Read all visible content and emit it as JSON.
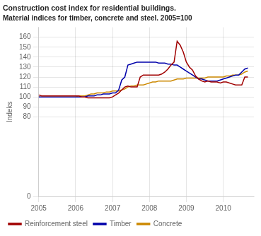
{
  "chart_data": {
    "type": "line",
    "title": "Construction cost index for residential buildings.",
    "subtitle": "Material indices for timber, concrete and steel. 2005=100",
    "y_label": "Indeks",
    "x": [
      2005.0,
      2005.083,
      2005.167,
      2005.25,
      2005.333,
      2005.417,
      2005.5,
      2005.583,
      2005.667,
      2005.75,
      2005.833,
      2005.917,
      2006.0,
      2006.083,
      2006.167,
      2006.25,
      2006.333,
      2006.417,
      2006.5,
      2006.583,
      2006.667,
      2006.75,
      2006.833,
      2006.917,
      2007.0,
      2007.083,
      2007.167,
      2007.25,
      2007.333,
      2007.417,
      2007.5,
      2007.583,
      2007.667,
      2007.75,
      2007.833,
      2007.917,
      2008.0,
      2008.083,
      2008.167,
      2008.25,
      2008.333,
      2008.417,
      2008.5,
      2008.583,
      2008.667,
      2008.75,
      2008.833,
      2008.917,
      2009.0,
      2009.083,
      2009.167,
      2009.25,
      2009.333,
      2009.417,
      2009.5,
      2009.583,
      2009.667,
      2009.75,
      2009.833,
      2009.917,
      2010.0,
      2010.083,
      2010.167,
      2010.25,
      2010.333,
      2010.417,
      2010.5,
      2010.583,
      2010.667
    ],
    "series": [
      {
        "name": "Reinforcement steel",
        "color": "#a00000",
        "values": [
          102,
          101,
          101,
          101,
          101,
          101,
          101,
          101,
          101,
          101,
          101,
          101,
          101,
          101,
          100,
          100,
          99,
          99,
          99,
          99,
          99,
          99,
          99,
          99,
          100,
          102,
          104,
          107,
          110,
          111,
          110,
          110,
          110,
          120,
          122,
          122,
          122,
          122,
          122,
          122,
          123,
          125,
          128,
          132,
          135,
          156,
          152,
          145,
          135,
          130,
          127,
          121,
          118,
          116,
          115,
          116,
          115,
          115,
          115,
          114,
          115,
          115,
          114,
          113,
          112,
          112,
          112,
          120,
          120
        ]
      },
      {
        "name": "Timber",
        "color": "#0000aa",
        "values": [
          100,
          100,
          100,
          100,
          100,
          100,
          100,
          100,
          100,
          100,
          100,
          100,
          100,
          100,
          100,
          100,
          101,
          101,
          101,
          102,
          102,
          103,
          103,
          103,
          104,
          104,
          107,
          117,
          120,
          132,
          133,
          134,
          135,
          135,
          135,
          135,
          135,
          135,
          135,
          134,
          134,
          134,
          133,
          133,
          132,
          132,
          130,
          128,
          126,
          124,
          122,
          120,
          118,
          118,
          117,
          116,
          116,
          116,
          116,
          117,
          118,
          119,
          120,
          121,
          122,
          122,
          125,
          128,
          129
        ]
      },
      {
        "name": "Concrete",
        "color": "#cc8800",
        "values": [
          100,
          100,
          100,
          100,
          100,
          100,
          100,
          100,
          100,
          100,
          100,
          100,
          100,
          101,
          101,
          101,
          102,
          103,
          103,
          104,
          104,
          104,
          105,
          105,
          106,
          106,
          106,
          107,
          108,
          110,
          111,
          111,
          112,
          112,
          112,
          113,
          114,
          115,
          115,
          116,
          116,
          116,
          116,
          116,
          117,
          118,
          118,
          118,
          119,
          119,
          119,
          119,
          119,
          119,
          119,
          120,
          120,
          120,
          120,
          120,
          120,
          121,
          121,
          122,
          122,
          122,
          123,
          125,
          126
        ]
      }
    ],
    "xlim": [
      2005.0,
      2010.83
    ],
    "xticks": [
      2005,
      2006,
      2007,
      2008,
      2009,
      2010
    ],
    "ylim": [
      0,
      170
    ],
    "yticks": [
      0,
      80,
      90,
      100,
      110,
      120,
      130,
      140,
      150,
      160
    ],
    "grid": true,
    "legend": "lower left"
  }
}
